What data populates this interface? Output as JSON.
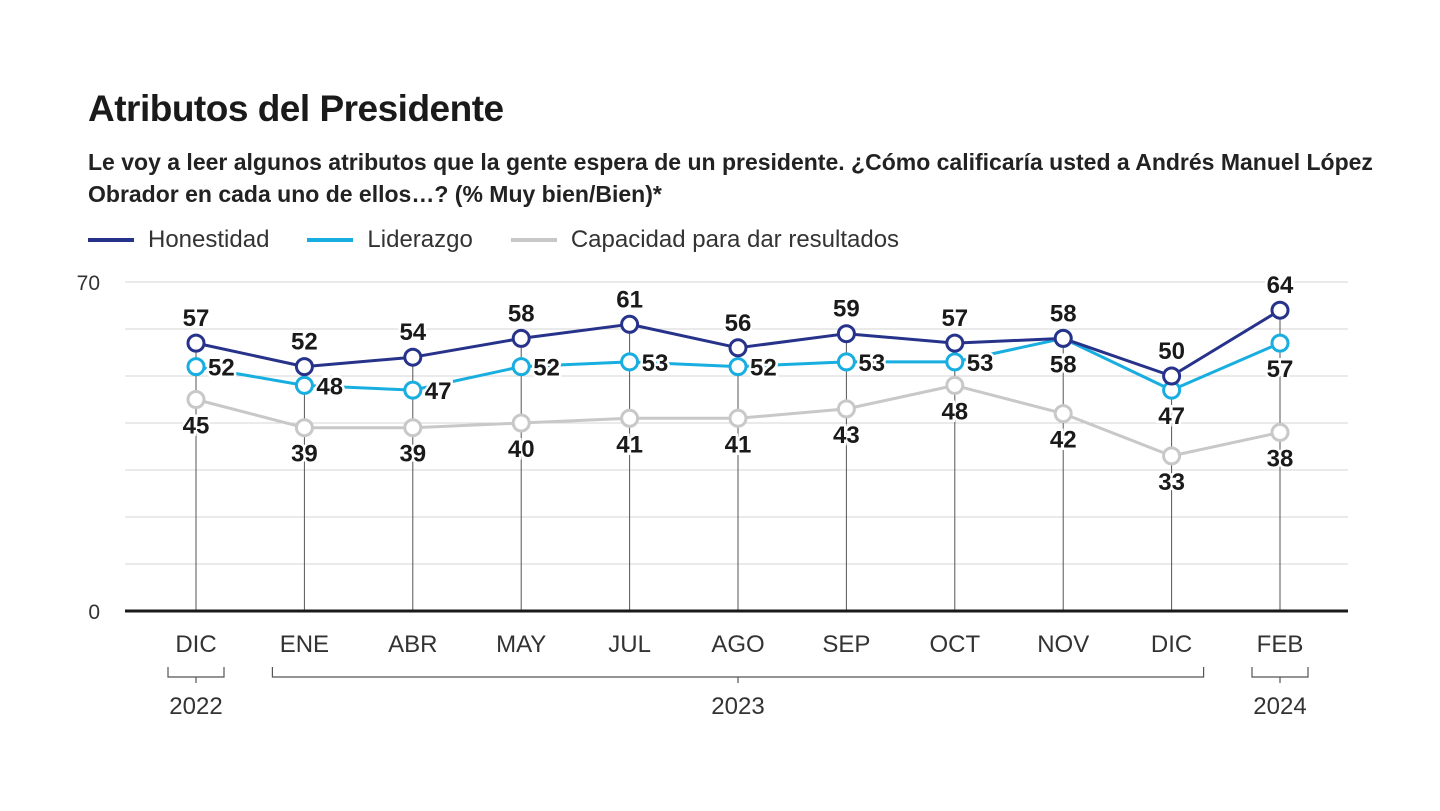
{
  "header": {
    "title": "Atributos del Presidente",
    "subtitle": "Le voy a leer algunos atributos que la gente espera de un presidente. ¿Cómo calificaría usted a Andrés Manuel López Obrador en cada uno de ellos…? (% Muy bien/Bien)*"
  },
  "chart_data": {
    "type": "line",
    "title": "Atributos del Presidente",
    "subtitle": "Le voy a leer algunos atributos que la gente espera de un presidente. ¿Cómo calificaría usted a Andrés Manuel López Obrador en cada uno de ellos…? (% Muy bien/Bien)*",
    "categories": [
      "DIC",
      "ENE",
      "ABR",
      "MAY",
      "JUL",
      "AGO",
      "SEP",
      "OCT",
      "NOV",
      "DIC",
      "FEB"
    ],
    "year_groups": [
      {
        "label": "2022",
        "start": 0,
        "end": 0
      },
      {
        "label": "2023",
        "start": 1,
        "end": 9
      },
      {
        "label": "2024",
        "start": 10,
        "end": 10
      }
    ],
    "ylim": [
      0,
      70
    ],
    "y_tick_labels": [
      "0",
      "70"
    ],
    "grid": true,
    "legend_position": "top-left",
    "series": [
      {
        "name": "Honestidad",
        "color": "#27338a",
        "values": [
          57,
          52,
          54,
          58,
          61,
          56,
          59,
          57,
          58,
          50,
          64
        ],
        "label_pos": [
          "above",
          "above",
          "above",
          "above",
          "above",
          "above",
          "above",
          "above",
          "above",
          "above",
          "above"
        ]
      },
      {
        "name": "Liderazgo",
        "color": "#19aee0",
        "values": [
          52,
          48,
          47,
          52,
          53,
          52,
          53,
          53,
          58,
          47,
          57
        ],
        "label_pos": [
          "right",
          "right",
          "right",
          "right",
          "right",
          "right",
          "right",
          "right",
          "below",
          "below",
          "below"
        ]
      },
      {
        "name": "Capacidad para dar resultados",
        "color": "#c8c8c8",
        "values": [
          45,
          39,
          39,
          40,
          41,
          41,
          43,
          48,
          42,
          33,
          38
        ],
        "label_pos": [
          "below",
          "below",
          "below",
          "below",
          "below",
          "below",
          "below",
          "below",
          "below",
          "below",
          "below"
        ]
      }
    ]
  }
}
